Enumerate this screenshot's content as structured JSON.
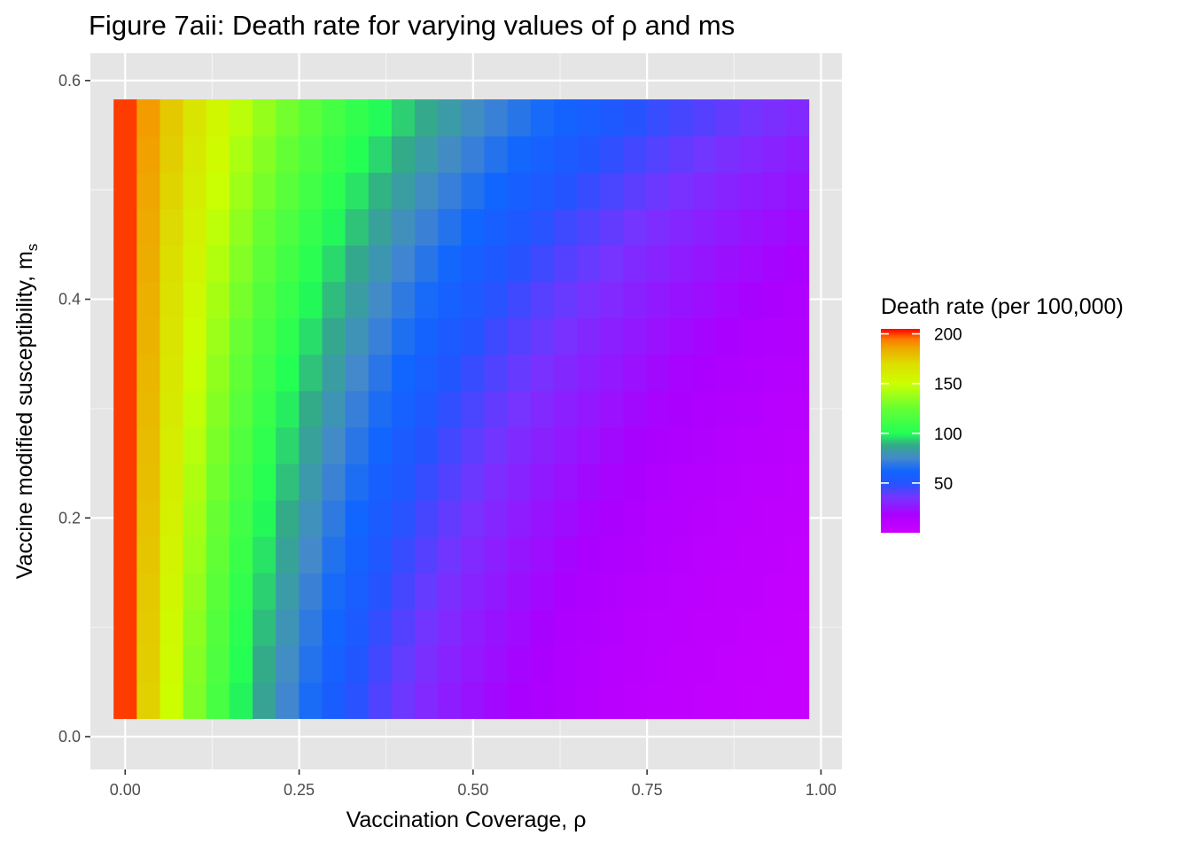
{
  "chart_data": {
    "type": "heatmap",
    "title": "Figure 7aii: Death rate for varying values of ρ and ms",
    "xlabel": "Vaccination Coverage,  ρ",
    "ylabel": "Vaccine modified susceptibility, m",
    "ylabel_subscript": "s",
    "xlim": [
      -0.05,
      1.03
    ],
    "ylim": [
      -0.03,
      0.625
    ],
    "x_ticks": [
      0.0,
      0.25,
      0.5,
      0.75,
      1.0
    ],
    "x_tick_labels": [
      "0.00",
      "0.25",
      "0.50",
      "0.75",
      "1.00"
    ],
    "y_ticks": [
      0.0,
      0.2,
      0.4,
      0.6
    ],
    "y_tick_labels": [
      "0.0",
      "0.2",
      "0.4",
      "0.6"
    ],
    "grid": true,
    "panel_background": "#e5e5e5",
    "x_values": {
      "start": 0.0,
      "step": 0.0333,
      "count": 30
    },
    "y_values": {
      "start": 0.0333,
      "step": 0.0333,
      "count": 17
    },
    "value_model": {
      "description_note": "",
      "base": 200,
      "decay": 4.4,
      "min": 2
    },
    "legend": {
      "title": "Death rate (per 100,000)",
      "position": "right",
      "range": [
        0,
        205
      ],
      "ticks": [
        200,
        150,
        100,
        50
      ],
      "tick_labels": [
        "200",
        "150",
        "100",
        "50"
      ],
      "colors": [
        {
          "value": 0,
          "color": "#cc00ff"
        },
        {
          "value": 18,
          "color": "#aa00ff"
        },
        {
          "value": 35,
          "color": "#7733ff"
        },
        {
          "value": 50,
          "color": "#2255ff"
        },
        {
          "value": 62,
          "color": "#1166ff"
        },
        {
          "value": 75,
          "color": "#4488cc"
        },
        {
          "value": 88,
          "color": "#33aa88"
        },
        {
          "value": 100,
          "color": "#22ff55"
        },
        {
          "value": 125,
          "color": "#66ff33"
        },
        {
          "value": 150,
          "color": "#ccff00"
        },
        {
          "value": 170,
          "color": "#dddd00"
        },
        {
          "value": 185,
          "color": "#eeaa00"
        },
        {
          "value": 195,
          "color": "#ff7700"
        },
        {
          "value": 205,
          "color": "#ff0000"
        }
      ]
    }
  }
}
